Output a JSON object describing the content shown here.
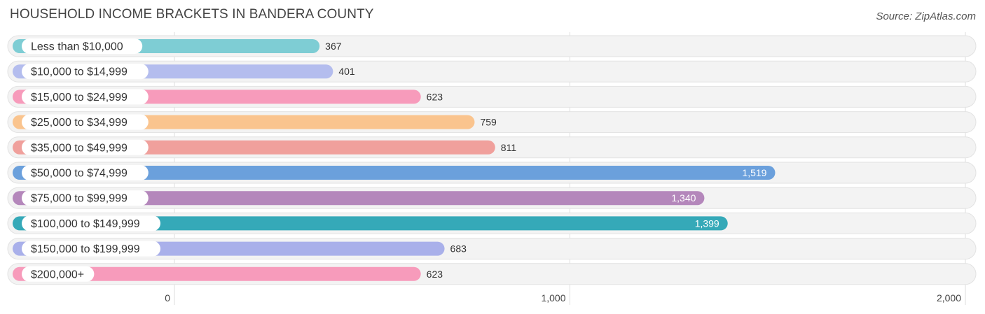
{
  "header": {
    "title": "HOUSEHOLD INCOME BRACKETS IN BANDERA COUNTY",
    "source": "Source: ZipAtlas.com"
  },
  "chart_data": {
    "type": "bar",
    "orientation": "horizontal",
    "title": "HOUSEHOLD INCOME BRACKETS IN BANDERA COUNTY",
    "xlabel": "",
    "ylabel": "",
    "xlim": [
      0,
      2000
    ],
    "ticks": [
      0,
      1000,
      2000
    ],
    "tick_labels": [
      "0",
      "1,000",
      "2,000"
    ],
    "grid": true,
    "categories": [
      "Less than $10,000",
      "$10,000 to $14,999",
      "$15,000 to $24,999",
      "$25,000 to $34,999",
      "$35,000 to $49,999",
      "$50,000 to $74,999",
      "$75,000 to $99,999",
      "$100,000 to $149,999",
      "$150,000 to $199,999",
      "$200,000+"
    ],
    "values": [
      367,
      401,
      623,
      759,
      811,
      1519,
      1340,
      1399,
      683,
      623
    ],
    "value_labels": [
      "367",
      "401",
      "623",
      "759",
      "811",
      "1,519",
      "1,340",
      "1,399",
      "683",
      "623"
    ],
    "colors": [
      "#7ecdd4",
      "#b4bdee",
      "#f79bbb",
      "#fac48e",
      "#f0a09c",
      "#6ba0dc",
      "#b487bb",
      "#35a9b8",
      "#a9b0ea",
      "#f79bbb"
    ]
  }
}
